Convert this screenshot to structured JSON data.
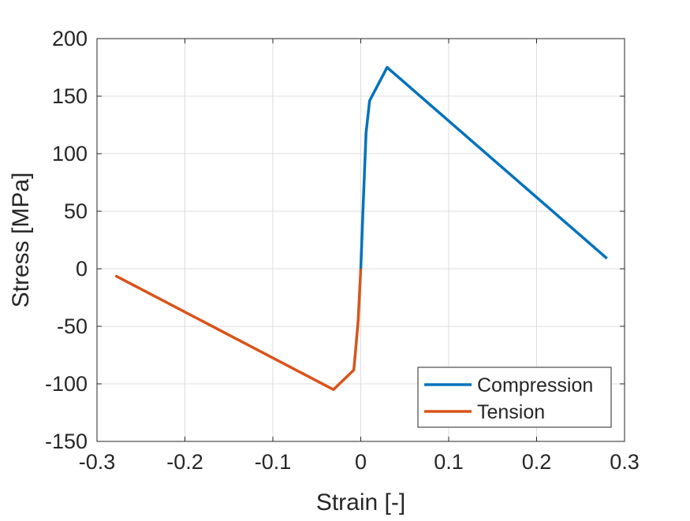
{
  "chart_data": {
    "type": "line",
    "title": "",
    "xlabel": "Strain [-]",
    "ylabel": "Stress [MPa]",
    "xlim": [
      -0.3,
      0.3
    ],
    "ylim": [
      -150,
      200
    ],
    "xticks": [
      -0.3,
      -0.2,
      -0.1,
      0,
      0.1,
      0.2,
      0.3
    ],
    "xtick_labels": [
      "-0.3",
      "-0.2",
      "-0.1",
      "0",
      "0.1",
      "0.2",
      "0.3"
    ],
    "yticks": [
      -150,
      -100,
      -50,
      0,
      50,
      100,
      150,
      200
    ],
    "ytick_labels": [
      "-150",
      "-100",
      "-50",
      "0",
      "50",
      "100",
      "150",
      "200"
    ],
    "grid": true,
    "legend_position": "bottom-right",
    "series": [
      {
        "name": "Compression",
        "color": "#0072BD",
        "x": [
          0,
          0.003,
          0.006,
          0.01,
          0.03,
          0.28
        ],
        "y": [
          0,
          60,
          118,
          146,
          175,
          9
        ]
      },
      {
        "name": "Tension",
        "color": "#D95319",
        "x": [
          0,
          -0.003,
          -0.006,
          -0.008,
          -0.031,
          -0.279
        ],
        "y": [
          0,
          -45,
          -72,
          -88,
          -105,
          -6
        ]
      }
    ]
  }
}
